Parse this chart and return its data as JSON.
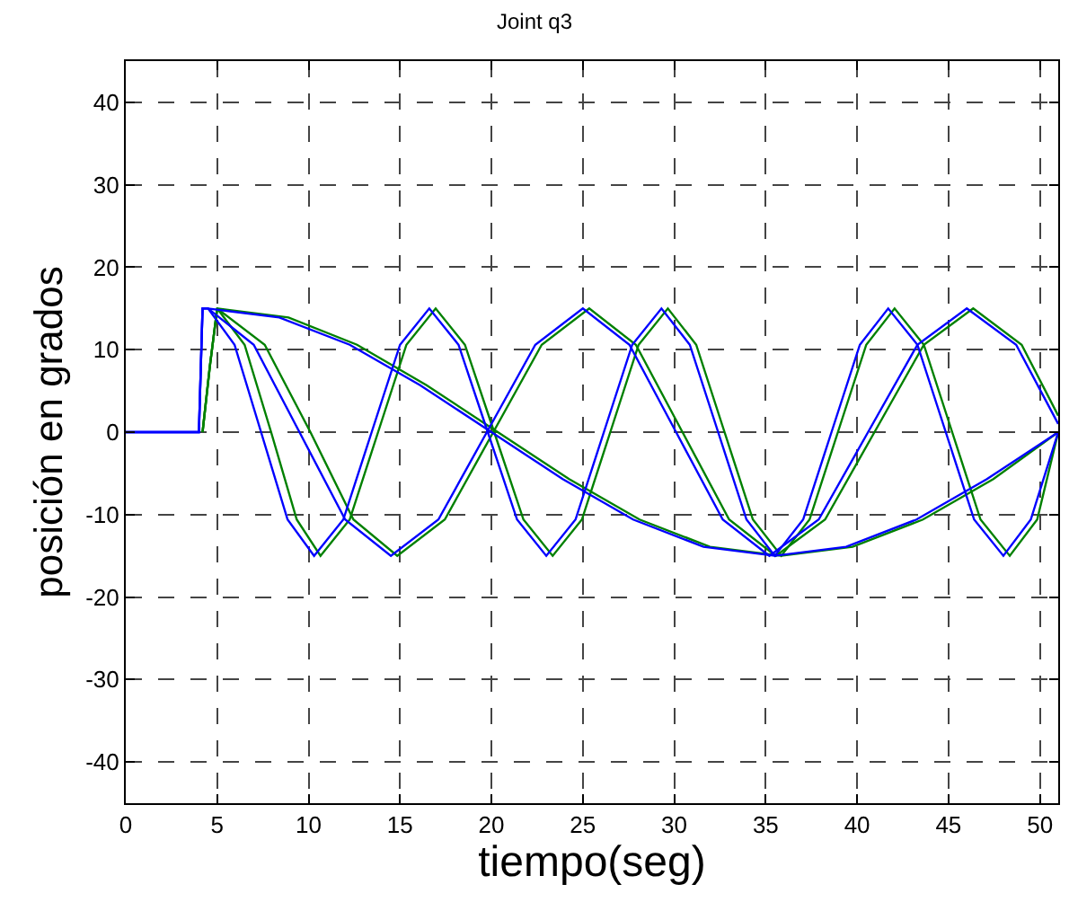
{
  "chart_data": {
    "type": "line",
    "title": "Joint q3",
    "xlabel": "tiempo(seg)",
    "ylabel": "posición en grados",
    "xlim": [
      0,
      51
    ],
    "ylim": [
      -45,
      45
    ],
    "xticks": [
      0,
      5,
      10,
      15,
      20,
      25,
      30,
      35,
      40,
      45,
      50
    ],
    "yticks": [
      -40,
      -30,
      -20,
      -10,
      0,
      10,
      20,
      30,
      40
    ],
    "grid": true,
    "line_style": "solid",
    "marker": "none",
    "series": [
      {
        "color": "#008000",
        "x": [
          4.2,
          4.6,
          5,
          6.5,
          7.95,
          9.35,
          10.65,
          12.25,
          13.8,
          15.35,
          16.95,
          18.55,
          20.15,
          21.75,
          23.35,
          24.95,
          26.5,
          28.05,
          29.65,
          31.2,
          32.75,
          34.3,
          35.85,
          37.4,
          38.95,
          40.5,
          42.05,
          43.65,
          45.2,
          46.75,
          48.35,
          49.85,
          51
        ],
        "values": [
          0,
          8,
          15,
          10.6,
          0,
          -10.6,
          -15,
          -10.6,
          0,
          10.6,
          15,
          10.6,
          0,
          -10.6,
          -15,
          -10.6,
          0,
          10.6,
          15,
          10.6,
          0,
          -10.6,
          -15,
          -10.6,
          0,
          10.6,
          15,
          10.6,
          0,
          -10.6,
          -15,
          -10.6,
          0
        ]
      },
      {
        "color": "#008000",
        "x": [
          4.2,
          4.6,
          5,
          7.6,
          10.1,
          12.45,
          14.85,
          17.45,
          20.1,
          22.75,
          25.35,
          27.9,
          30.45,
          33,
          35.55,
          38.25,
          40.95,
          43.65,
          46.35,
          49,
          51
        ],
        "values": [
          0,
          8,
          15,
          10.6,
          0,
          -10.6,
          -15,
          -10.6,
          0,
          10.6,
          15,
          10.6,
          0,
          -10.6,
          -15,
          -10.6,
          0,
          10.6,
          15,
          10.6,
          2
        ]
      },
      {
        "color": "#008000",
        "x": [
          4.2,
          4.6,
          5,
          8.9,
          12.65,
          16.45,
          20.35,
          24.25,
          28.1,
          31.95,
          35.85,
          39.75,
          43.6,
          47.45,
          51
        ],
        "values": [
          0,
          8,
          15,
          13.9,
          10.6,
          5.7,
          0,
          -5.7,
          -10.6,
          -13.9,
          -15,
          -13.9,
          -10.6,
          -5.7,
          0
        ]
      },
      {
        "color": "#0000ff",
        "x": [
          0,
          4,
          4.2,
          4.5,
          5.95,
          7.4,
          8.85,
          10.3,
          11.9,
          13.45,
          15.0,
          16.6,
          18.2,
          19.8,
          21.4,
          23,
          24.6,
          26.15,
          27.7,
          29.3,
          30.85,
          32.4,
          33.95,
          35.5,
          37.05,
          38.6,
          40.15,
          41.7,
          43.3,
          44.85,
          46.4,
          48,
          49.5,
          51
        ],
        "values": [
          0,
          0,
          15,
          15,
          10.6,
          0,
          -10.6,
          -15,
          -10.6,
          0,
          10.6,
          15,
          10.6,
          0,
          -10.6,
          -15,
          -10.6,
          0,
          10.6,
          15,
          10.6,
          0,
          -10.6,
          -15,
          -10.6,
          0,
          10.6,
          15,
          10.6,
          0,
          -10.6,
          -15,
          -10.6,
          0
        ]
      },
      {
        "color": "#0000ff",
        "x": [
          0,
          4,
          4.2,
          4.5,
          7,
          9.5,
          12,
          14.5,
          17.1,
          19.75,
          22.4,
          25,
          27.55,
          30.1,
          32.65,
          35.2,
          37.9,
          40.6,
          43.3,
          46,
          48.7,
          51
        ],
        "values": [
          0,
          0,
          15,
          15,
          10.6,
          0,
          -10.6,
          -15,
          -10.6,
          0,
          10.6,
          15,
          10.6,
          0,
          -10.6,
          -15,
          -10.6,
          0,
          10.6,
          15,
          10.6,
          1
        ]
      },
      {
        "color": "#0000ff",
        "x": [
          0,
          4,
          4.2,
          4.5,
          8.4,
          12.25,
          16.1,
          20,
          23.9,
          27.75,
          31.6,
          35.5,
          39.4,
          43.25,
          47.1,
          51
        ],
        "values": [
          0,
          0,
          15,
          15,
          13.9,
          10.6,
          5.7,
          0,
          -5.7,
          -10.6,
          -13.9,
          -15,
          -13.9,
          -10.6,
          -5.7,
          0
        ]
      }
    ]
  }
}
